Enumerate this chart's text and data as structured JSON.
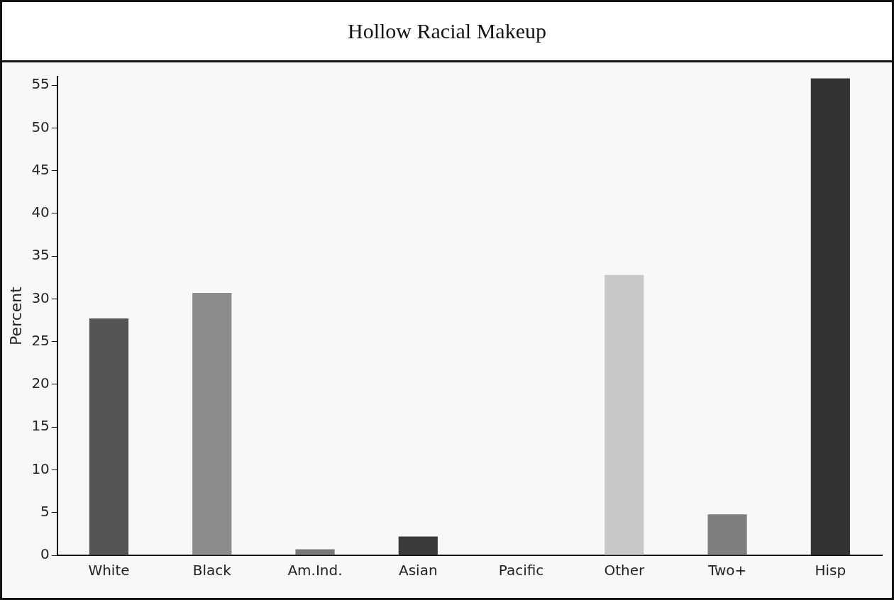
{
  "chart_data": {
    "type": "bar",
    "title": "Hollow Racial Makeup",
    "ylabel": "Percent",
    "categories": [
      "White",
      "Black",
      "Am.Ind.",
      "Asian",
      "Pacific",
      "Other",
      "Two+",
      "Hisp"
    ],
    "values": [
      27.7,
      30.7,
      0.7,
      2.2,
      0,
      32.8,
      4.8,
      55.8
    ],
    "colors": [
      "#555555",
      "#8c8c8c",
      "#777777",
      "#3a3a3a",
      "#999999",
      "#c8c8c8",
      "#7f7f7f",
      "#333333"
    ],
    "ylim": [
      0,
      56
    ],
    "yticks": [
      0,
      5,
      10,
      15,
      20,
      25,
      30,
      35,
      40,
      45,
      50,
      55
    ],
    "grid": false,
    "legend": false
  }
}
